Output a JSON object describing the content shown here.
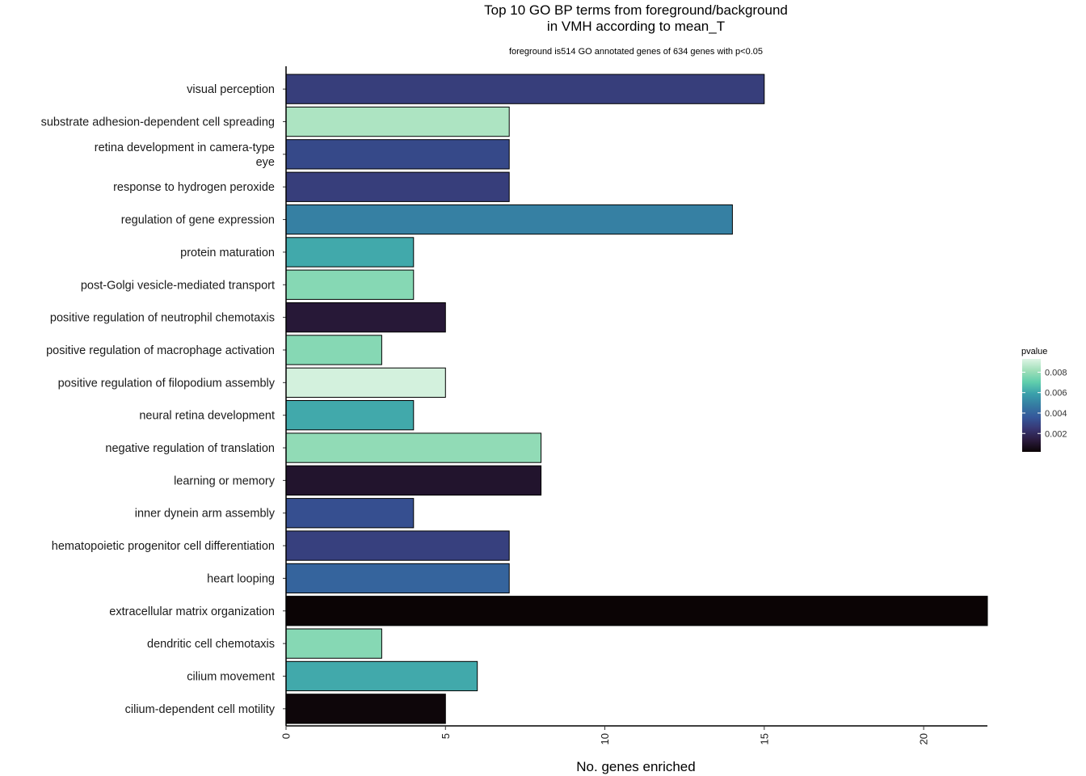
{
  "chart_data": {
    "type": "bar",
    "orientation": "horizontal",
    "title_lines": [
      "Top 10 GO BP terms from foreground/background",
      "in VMH according to mean_T"
    ],
    "subtitle": "foreground is514 GO annotated genes of 634 genes with p<0.05",
    "xlabel": "No. genes enriched",
    "ylabel": "",
    "xlim": [
      0,
      22
    ],
    "x_ticks": [
      0,
      5,
      10,
      15,
      20
    ],
    "grid": false,
    "legend": {
      "title": "pvalue",
      "placement": "right",
      "ticks": [
        0.002,
        0.004,
        0.006,
        0.008
      ],
      "range": [
        0.0002,
        0.0093
      ],
      "colorscale": [
        "#0b0405",
        "#2b1b3e",
        "#383773",
        "#35589b",
        "#357ba2",
        "#3aa0ab",
        "#60ceac",
        "#a0dfb9",
        "#def5e5"
      ]
    },
    "categories": [
      [
        "visual perception"
      ],
      [
        "substrate adhesion-dependent cell spreading"
      ],
      [
        "retina development in camera-type",
        "eye"
      ],
      [
        "response to hydrogen peroxide"
      ],
      [
        "regulation of gene expression"
      ],
      [
        "protein maturation"
      ],
      [
        "post-Golgi vesicle-mediated transport"
      ],
      [
        "positive regulation of neutrophil chemotaxis"
      ],
      [
        "positive regulation of macrophage activation"
      ],
      [
        "positive regulation of filopodium assembly"
      ],
      [
        "neural retina development"
      ],
      [
        "negative regulation of translation"
      ],
      [
        "learning or memory"
      ],
      [
        "inner dynein arm assembly"
      ],
      [
        "hematopoietic progenitor cell differentiation"
      ],
      [
        "heart looping"
      ],
      [
        "extracellular matrix organization"
      ],
      [
        "dendritic cell chemotaxis"
      ],
      [
        "cilium movement"
      ],
      [
        "cilium-dependent cell motility"
      ]
    ],
    "values": [
      15,
      7,
      7,
      7,
      14,
      4,
      4,
      5,
      3,
      5,
      4,
      8,
      8,
      4,
      7,
      7,
      22,
      3,
      6,
      5
    ],
    "pvalues": [
      0.0027,
      0.0084,
      0.0031,
      0.0027,
      0.0049,
      0.0061,
      0.0077,
      0.0012,
      0.0077,
      0.0091,
      0.0061,
      0.0079,
      0.001,
      0.0033,
      0.0028,
      0.004,
      0.0002,
      0.0077,
      0.0061,
      0.0003
    ]
  }
}
